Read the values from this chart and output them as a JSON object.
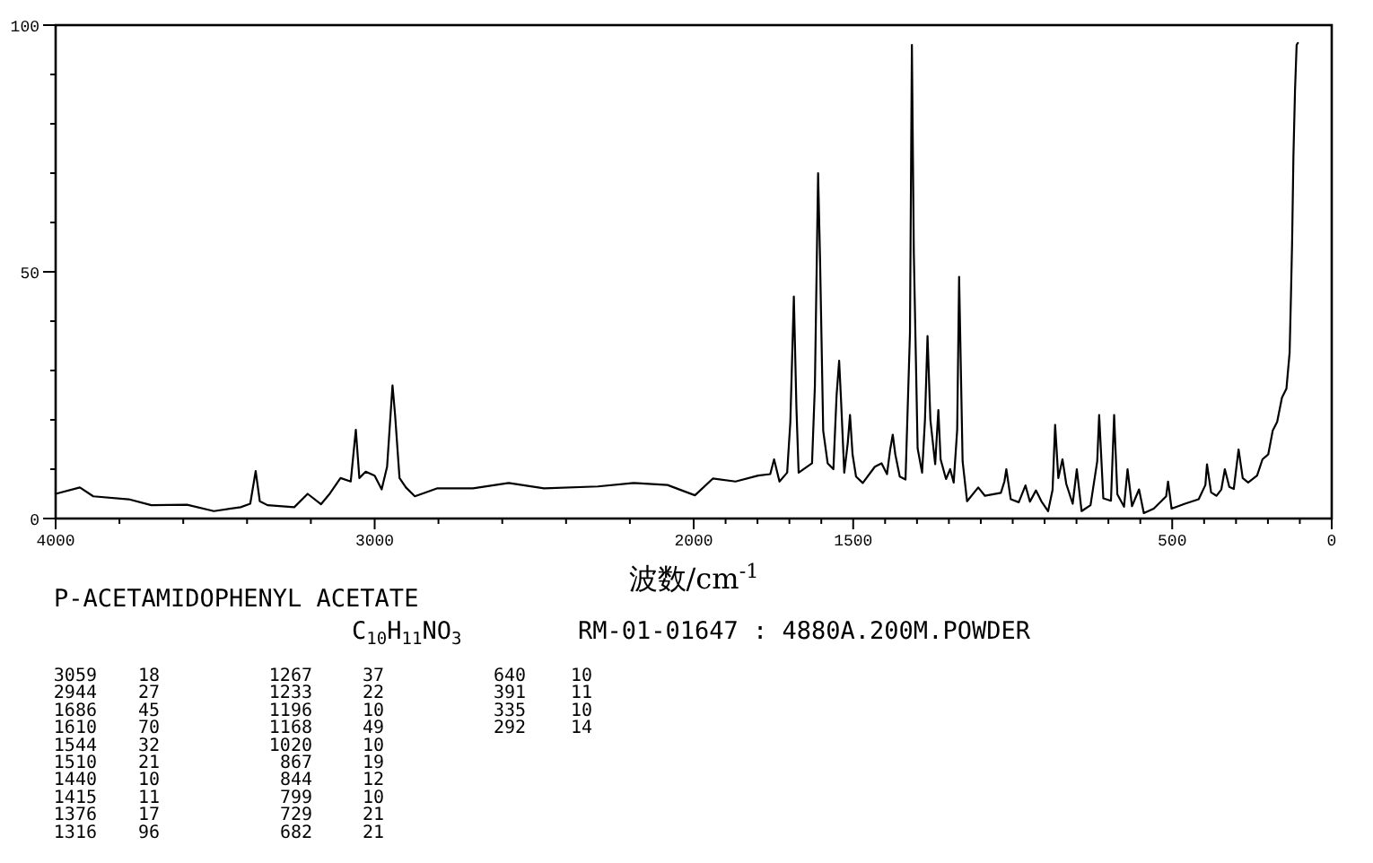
{
  "chart_data": {
    "type": "line",
    "xlabel": "波数/cm$^{-1}$",
    "color": "#000000",
    "xlim": [
      4000,
      0
    ],
    "ylim": [
      0,
      100
    ],
    "xticks": [
      4000,
      {
        "value": 3800,
        "label": null
      },
      {
        "value": 3600,
        "label": null
      },
      {
        "value": 3400,
        "label": null
      },
      {
        "value": 3200,
        "label": null
      },
      3000,
      {
        "value": 2800,
        "label": null
      },
      {
        "value": 2600,
        "label": null
      },
      {
        "value": 2400,
        "label": null
      },
      {
        "value": 2200,
        "label": null
      },
      2000,
      {
        "value": 1900,
        "label": null
      },
      {
        "value": 1800,
        "label": null
      },
      {
        "value": 1700,
        "label": null
      },
      {
        "value": 1600,
        "label": null
      },
      1500,
      {
        "value": 1400,
        "label": null
      },
      {
        "value": 1300,
        "label": null
      },
      {
        "value": 1200,
        "label": null
      },
      {
        "value": 1100,
        "label": null
      },
      {
        "value": 1000,
        "label": null
      },
      {
        "value": 900,
        "label": null
      },
      {
        "value": 800,
        "label": null
      },
      {
        "value": 700,
        "label": null
      },
      {
        "value": 600,
        "label": null
      },
      500,
      {
        "value": 400,
        "label": null
      },
      {
        "value": 300,
        "label": null
      },
      {
        "value": 200,
        "label": null
      },
      {
        "value": 100,
        "label": null
      },
      0
    ],
    "yticks": [
      0,
      {
        "value": 10,
        "label": null
      },
      {
        "value": 20,
        "label": null
      },
      {
        "value": 30,
        "label": null
      },
      {
        "value": 40,
        "label": null
      },
      50,
      {
        "value": 60,
        "label": null
      },
      {
        "value": 70,
        "label": null
      },
      {
        "value": 80,
        "label": null
      },
      {
        "value": 90,
        "label": null
      },
      100
    ],
    "x": [
      4000,
      3924,
      3882,
      3771,
      3700,
      3588,
      3504,
      3420,
      3390,
      3373,
      3360,
      3336,
      3252,
      3210,
      3168,
      3140,
      3107,
      3075,
      3059,
      3048,
      3028,
      3000,
      2978,
      2961,
      2944,
      2936,
      2922,
      2902,
      2874,
      2805,
      2692,
      2580,
      2469,
      2300,
      2188,
      2082,
      1996,
      1940,
      1869,
      1798,
      1760,
      1748,
      1731,
      1707,
      1697,
      1686,
      1678,
      1671,
      1629,
      1620,
      1610,
      1604,
      1594,
      1580,
      1562,
      1552,
      1544,
      1538,
      1528,
      1517,
      1510,
      1502,
      1491,
      1470,
      1432,
      1411,
      1394,
      1384,
      1376,
      1368,
      1354,
      1336,
      1322,
      1316,
      1310,
      1298,
      1284,
      1275,
      1267,
      1258,
      1243,
      1233,
      1226,
      1209,
      1196,
      1185,
      1174,
      1168,
      1157,
      1143,
      1108,
      1087,
      1037,
      1026,
      1020,
      1006,
      981,
      960,
      946,
      927,
      910,
      889,
      875,
      867,
      857,
      844,
      832,
      812,
      799,
      784,
      756,
      735,
      729,
      716,
      692,
      686,
      682,
      672,
      651,
      640,
      626,
      604,
      589,
      558,
      519,
      513,
      502,
      460,
      417,
      396,
      391,
      378,
      361,
      346,
      335,
      321,
      307,
      292,
      279,
      262,
      234,
      217,
      199,
      185,
      171,
      156,
      142,
      132,
      128,
      124,
      120,
      115,
      110,
      106
    ],
    "values": [
      5.0,
      6.3,
      4.5,
      3.9,
      2.7,
      2.8,
      1.5,
      2.3,
      3.0,
      9.6,
      3.5,
      2.7,
      2.3,
      5.0,
      2.9,
      5.1,
      8.2,
      7.5,
      18,
      8.2,
      9.5,
      8.7,
      5.9,
      10.5,
      27,
      21,
      8.2,
      6.3,
      4.5,
      6.1,
      6.1,
      7.2,
      6.1,
      6.5,
      7.2,
      6.8,
      4.7,
      8.1,
      7.5,
      8.7,
      9.0,
      12.0,
      7.5,
      9.3,
      19.6,
      45,
      22.5,
      9.3,
      11.2,
      26.9,
      70,
      53,
      17.8,
      11.2,
      10,
      25,
      32,
      23.9,
      9.3,
      15.3,
      21,
      13,
      8.5,
      7.2,
      10.5,
      11.2,
      9,
      14,
      17,
      13,
      8.5,
      7.9,
      37.6,
      96,
      54,
      14.2,
      9.3,
      20,
      37,
      20,
      11,
      22,
      12,
      8,
      10,
      7.3,
      18,
      49,
      11.6,
      3.5,
      6.3,
      4.6,
      5.2,
      7.5,
      10,
      3.9,
      3.3,
      6.7,
      3.4,
      5.7,
      3.5,
      1.5,
      5.8,
      19,
      8.2,
      12,
      7,
      3,
      10,
      1.5,
      2.7,
      11.6,
      21,
      4.1,
      3.6,
      14,
      21,
      4.9,
      2.4,
      10,
      2.5,
      5.9,
      1.1,
      2,
      4.5,
      7.5,
      2,
      3,
      3.9,
      6.8,
      11,
      5.3,
      4.6,
      5.9,
      10,
      6.4,
      6,
      14,
      8.2,
      7.3,
      8.7,
      12,
      13,
      17.8,
      19.6,
      24.5,
      26.3,
      33.6,
      44.5,
      56.6,
      73.6,
      86.9,
      96,
      96.4
    ],
    "annotations": [
      "P-ACETAMIDOPHENYL ACETATE",
      "C$_{10}$H$_{11}$NO$_{3}$",
      "RM-01-01647 : 4880A.200M.POWDER",
      "3059",
      "18",
      "2944",
      "27",
      "1686",
      "45",
      "1610",
      "70",
      "1544",
      "32",
      "1510",
      "21",
      "1440",
      "10",
      "1415",
      "11",
      "1376",
      "17",
      "1316",
      "96",
      "1267",
      "37",
      "1233",
      "22",
      "1196",
      "10",
      "1168",
      "49",
      "1020",
      "10",
      "867",
      "19",
      "844",
      "12",
      "799",
      "10",
      "729",
      "21",
      "682",
      "21",
      "640",
      "10",
      "391",
      "11",
      "335",
      "10",
      "292",
      "14"
    ]
  }
}
